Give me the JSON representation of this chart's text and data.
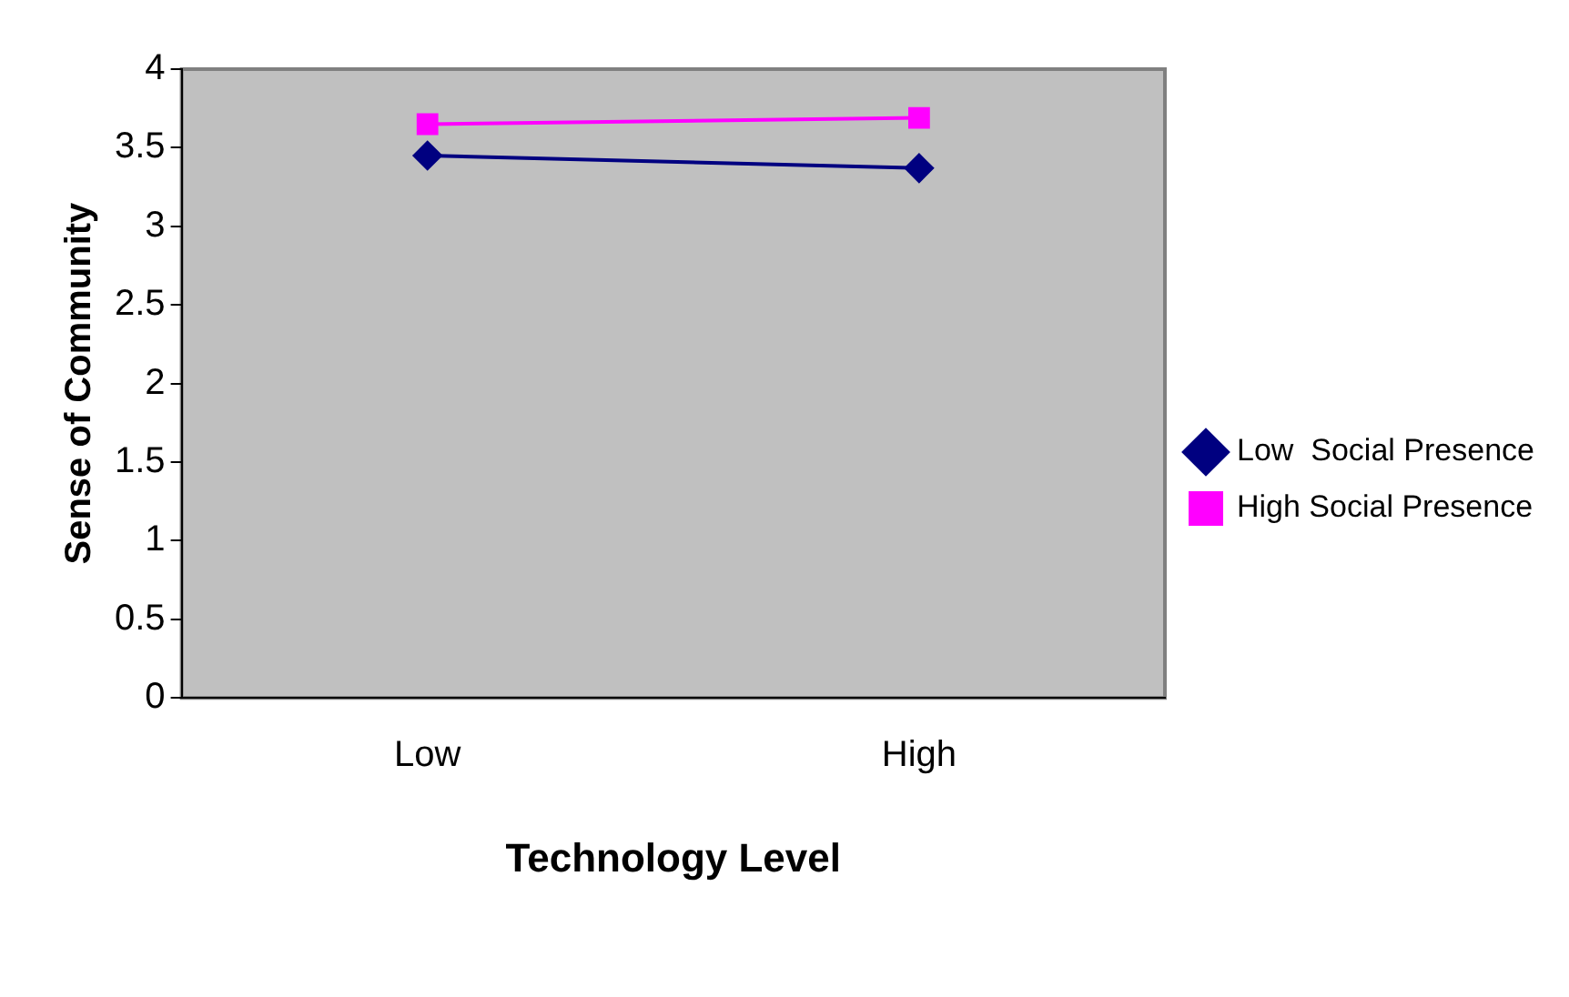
{
  "chart_data": {
    "type": "line",
    "xlabel": "Technology Level",
    "ylabel": "Sense of Community",
    "categories": [
      "Low",
      "High"
    ],
    "series": [
      {
        "name": "Low  Social Presence",
        "color": "#000080",
        "marker": "diamond",
        "values": [
          3.45,
          3.37
        ]
      },
      {
        "name": "High Social Presence",
        "color": "#ff00ff",
        "marker": "square",
        "values": [
          3.65,
          3.69
        ]
      }
    ],
    "ylim": [
      0,
      4
    ],
    "yticks": [
      0,
      0.5,
      1,
      1.5,
      2,
      2.5,
      3,
      3.5,
      4
    ],
    "grid": false,
    "legend": "right"
  }
}
